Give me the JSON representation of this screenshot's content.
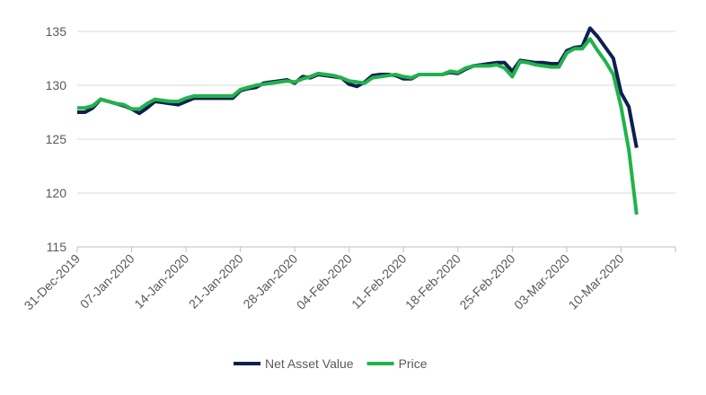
{
  "chart_data": {
    "type": "line",
    "categories": [
      "31-Dec-2019",
      null,
      null,
      null,
      null,
      null,
      null,
      "07-Jan-2020",
      null,
      null,
      null,
      null,
      null,
      null,
      "14-Jan-2020",
      null,
      null,
      null,
      null,
      null,
      null,
      "21-Jan-2020",
      null,
      null,
      null,
      null,
      null,
      null,
      "28-Jan-2020",
      null,
      null,
      null,
      null,
      null,
      null,
      "04-Feb-2020",
      null,
      null,
      null,
      null,
      null,
      null,
      "11-Feb-2020",
      null,
      null,
      null,
      null,
      null,
      null,
      "18-Feb-2020",
      null,
      null,
      null,
      null,
      null,
      null,
      "25-Feb-2020",
      null,
      null,
      null,
      null,
      null,
      null,
      "03-Mar-2020",
      null,
      null,
      null,
      null,
      null,
      null,
      "10-Mar-2020",
      null,
      null,
      null,
      null,
      null,
      null,
      null
    ],
    "series": [
      {
        "name": "Net Asset Value",
        "color": "#0e2050",
        "values": [
          127.5,
          127.5,
          127.9,
          128.7,
          128.5,
          128.3,
          128.1,
          127.8,
          127.4,
          127.9,
          128.5,
          128.4,
          128.3,
          128.2,
          128.5,
          128.8,
          128.8,
          128.8,
          128.8,
          128.8,
          128.8,
          129.5,
          129.7,
          129.8,
          130.2,
          130.3,
          130.4,
          130.5,
          130.2,
          130.8,
          130.7,
          131.0,
          130.9,
          130.8,
          130.7,
          130.1,
          129.9,
          130.3,
          130.9,
          131.0,
          131.0,
          130.9,
          130.6,
          130.6,
          131.0,
          131.0,
          131.0,
          131.0,
          131.2,
          131.1,
          131.5,
          131.8,
          131.9,
          132.0,
          132.1,
          132.1,
          131.3,
          132.3,
          132.2,
          132.1,
          132.1,
          132.0,
          132.0,
          133.2,
          133.5,
          133.6,
          135.3,
          134.5,
          133.5,
          132.5,
          129.3,
          128.0,
          124.2,
          null,
          null,
          null,
          null,
          null
        ]
      },
      {
        "name": "Price",
        "color": "#22b24c",
        "values": [
          127.9,
          127.9,
          128.1,
          128.7,
          128.5,
          128.3,
          128.2,
          127.8,
          127.8,
          128.3,
          128.7,
          128.6,
          128.5,
          128.5,
          128.8,
          129.0,
          129.0,
          129.0,
          129.0,
          129.0,
          129.0,
          129.6,
          129.8,
          130.0,
          130.1,
          130.2,
          130.3,
          130.4,
          130.3,
          130.6,
          130.8,
          131.1,
          131.0,
          130.9,
          130.7,
          130.4,
          130.3,
          130.2,
          130.7,
          130.8,
          130.9,
          131.0,
          130.8,
          130.7,
          131.0,
          131.0,
          131.0,
          131.0,
          131.3,
          131.2,
          131.6,
          131.8,
          131.8,
          131.8,
          131.9,
          131.6,
          130.8,
          132.2,
          132.1,
          131.9,
          131.8,
          131.7,
          131.7,
          133.0,
          133.4,
          133.4,
          134.3,
          133.2,
          132.2,
          131.0,
          128.0,
          124.0,
          118.0,
          null,
          null,
          null,
          null,
          null
        ]
      }
    ],
    "ylim": [
      115,
      135
    ],
    "yticks": [
      115,
      120,
      125,
      130,
      135
    ],
    "grid": true,
    "legend": "bottom"
  }
}
